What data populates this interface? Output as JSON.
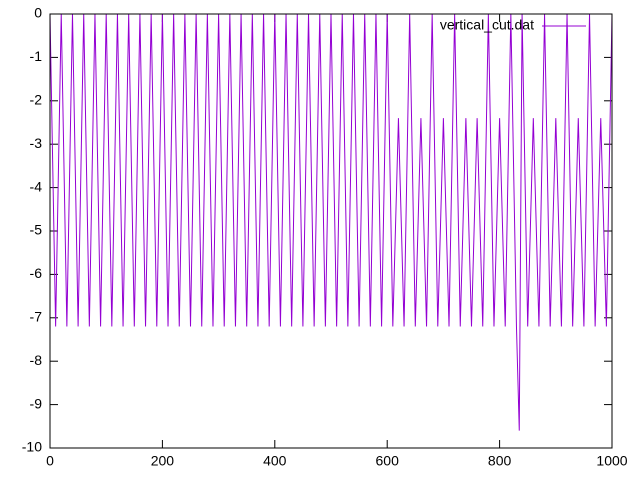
{
  "chart_data": {
    "type": "line",
    "x": [
      0,
      10,
      20,
      30,
      40,
      50,
      60,
      70,
      80,
      90,
      100,
      110,
      120,
      130,
      140,
      150,
      160,
      170,
      180,
      190,
      200,
      210,
      220,
      230,
      240,
      250,
      260,
      270,
      280,
      290,
      300,
      310,
      320,
      330,
      340,
      350,
      360,
      370,
      380,
      390,
      400,
      410,
      420,
      430,
      440,
      450,
      460,
      470,
      480,
      490,
      500,
      510,
      520,
      530,
      540,
      550,
      560,
      570,
      580,
      590,
      600,
      610,
      620,
      630,
      640,
      650,
      660,
      670,
      680,
      690,
      700,
      710,
      720,
      730,
      740,
      750,
      760,
      770,
      780,
      790,
      800,
      810,
      820,
      830,
      835,
      840,
      850,
      860,
      870,
      880,
      890,
      900,
      910,
      920,
      930,
      940,
      950,
      960,
      970,
      980,
      990,
      1000
    ],
    "series": [
      {
        "name": "vertical_cut.dat",
        "color": "#9400d3",
        "values": [
          0,
          -7.2,
          0,
          -7.2,
          0,
          -7.2,
          0,
          -7.2,
          0,
          -7.2,
          0,
          -7.2,
          0,
          -7.2,
          0,
          -7.2,
          0,
          -7.2,
          0,
          -7.2,
          0,
          -7.2,
          0,
          -7.2,
          0,
          -7.2,
          0,
          -7.2,
          0,
          -7.2,
          0,
          -7.2,
          0,
          -7.2,
          0,
          -7.2,
          0,
          -7.2,
          0,
          -7.2,
          0,
          -7.2,
          0,
          -7.2,
          0,
          -7.2,
          0,
          -7.2,
          0,
          -7.2,
          0,
          -7.2,
          0,
          -7.2,
          0,
          -7.2,
          0,
          -7.2,
          0,
          -7.2,
          0,
          -7.2,
          -2.4,
          -7.2,
          0,
          -7.2,
          -2.4,
          -7.2,
          0,
          -7.2,
          -2.4,
          -7.2,
          0,
          -7.2,
          -2.4,
          -7.2,
          -2.4,
          -7.2,
          0,
          -7.2,
          -2.4,
          -7.2,
          0,
          -7.2,
          -9.6,
          0,
          -7.2,
          -2.4,
          -7.2,
          0,
          -7.2,
          -2.4,
          -7.2,
          0,
          -7.2,
          -2.4,
          -7.2,
          0,
          -7.2,
          -2.4,
          -7.2,
          0
        ]
      }
    ],
    "xlim": [
      0,
      1000
    ],
    "xticks": [
      0,
      200,
      400,
      600,
      800,
      1000
    ],
    "ylim": [
      -10,
      0
    ],
    "yticks": [
      -10,
      -9,
      -8,
      -7,
      -6,
      -5,
      -4,
      -3,
      -2,
      -1,
      0
    ],
    "legend": "top-right"
  }
}
